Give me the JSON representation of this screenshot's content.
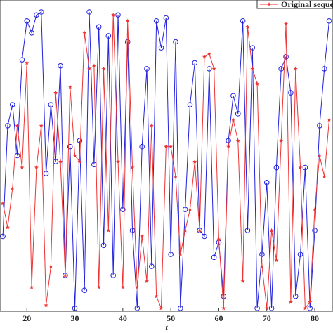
{
  "chart_data": {
    "type": "line",
    "x_label": "t",
    "x": [
      15,
      16,
      17,
      18,
      19,
      20,
      21,
      22,
      23,
      24,
      25,
      26,
      27,
      28,
      29,
      30,
      31,
      32,
      33,
      34,
      35,
      36,
      37,
      38,
      39,
      40,
      41,
      42,
      43,
      44,
      45,
      46,
      47,
      48,
      49,
      50,
      51,
      52,
      53,
      54,
      55,
      56,
      57,
      58,
      59,
      60,
      61,
      62,
      63,
      64,
      65,
      66,
      67,
      68,
      69,
      70,
      71,
      72,
      73,
      74,
      75,
      76,
      77,
      78,
      79,
      80,
      81,
      82,
      83
    ],
    "series": [
      {
        "color": "#2222dd",
        "marker": "circle",
        "values": [
          0.25,
          0.62,
          0.69,
          0.52,
          0.84,
          0.97,
          0.93,
          0.99,
          1.0,
          0.46,
          0.69,
          0.5,
          0.82,
          0.12,
          0.55,
          0.01,
          0.57,
          0.07,
          1.0,
          0.49,
          0.95,
          0.22,
          0.92,
          0.12,
          0.99,
          0.34,
          0.9,
          0.27,
          0.01,
          0.55,
          0.81,
          0.15,
          0.97,
          0.88,
          0.98,
          0.19,
          0.9,
          0.01,
          0.34,
          0.69,
          0.83,
          0.27,
          0.25,
          0.81,
          0.18,
          0.23,
          0.05,
          0.57,
          0.72,
          0.66,
          0.97,
          0.27,
          0.88,
          0.01,
          0.19,
          0.43,
          0.01,
          0.48,
          0.81,
          0.85,
          0.73,
          0.05,
          0.19,
          0.48,
          0.01,
          0.27,
          0.62,
          0.81,
          0.97
        ]
      },
      {
        "name": "Original sequence",
        "color": "#ee3333",
        "marker": "star",
        "values": [
          0.36,
          0.28,
          0.41,
          0.62,
          0.48,
          0.83,
          0.08,
          0.48,
          0.62,
          0.02,
          0.15,
          0.73,
          0.5,
          0.12,
          0.75,
          0.52,
          0.5,
          0.93,
          0.81,
          0.82,
          0.08,
          0.81,
          0.27,
          0.99,
          0.5,
          0.08,
          0.97,
          0.48,
          0.08,
          0.25,
          0.1,
          0.62,
          0.05,
          0.01,
          0.55,
          0.55,
          0.45,
          0.19,
          0.27,
          0.34,
          0.5,
          0.27,
          0.85,
          0.86,
          0.81,
          0.24,
          0.01,
          0.55,
          0.64,
          0.57,
          0.1,
          0.95,
          0.81,
          0.76,
          0.15,
          0.01,
          0.27,
          0.17,
          0.57,
          0.96,
          0.03,
          0.81,
          0.48,
          0.01,
          0.03,
          0.34,
          0.52,
          0.45,
          0.64
        ]
      }
    ],
    "xlim": [
      14.4,
      83.8
    ],
    "ylim": [
      0,
      1
    ],
    "xticks": [
      20,
      30,
      40,
      50,
      60,
      70,
      80
    ],
    "legend": "top-right"
  }
}
